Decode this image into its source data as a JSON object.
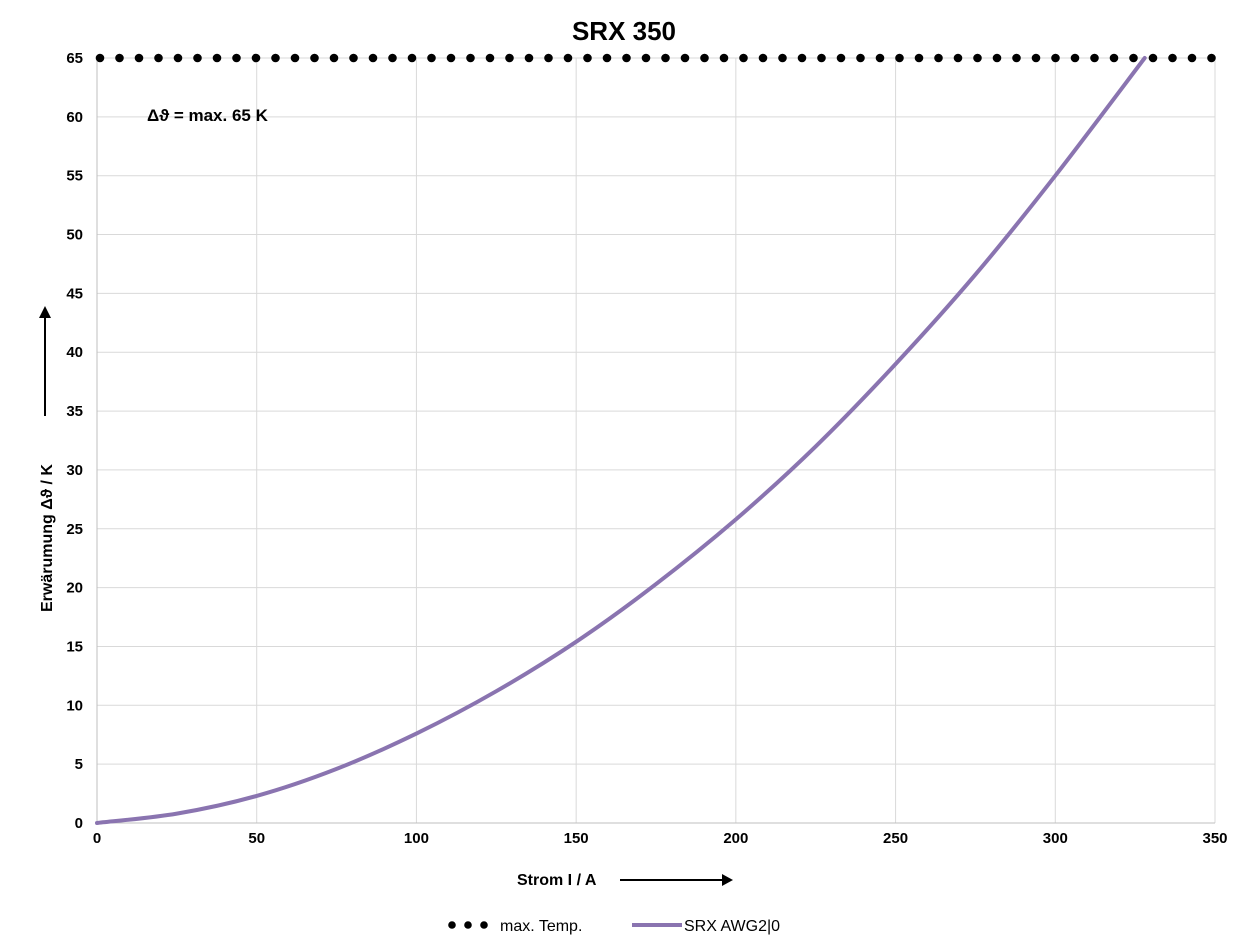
{
  "chart_data": {
    "type": "line",
    "title": "SRX 350",
    "xlabel": "Strom I / A",
    "ylabel": "Erwärumung Δϑ / K",
    "xlim": [
      0,
      350
    ],
    "ylim": [
      0,
      65
    ],
    "x_ticks": [
      "0",
      "50",
      "100",
      "150",
      "200",
      "250",
      "300",
      "350"
    ],
    "y_ticks": [
      "0",
      "5",
      "10",
      "15",
      "20",
      "25",
      "30",
      "35",
      "40",
      "45",
      "50",
      "55",
      "60",
      "65"
    ],
    "grid": true,
    "legend_position": "bottom",
    "annotation": "Δϑ = max. 65 K",
    "series": [
      {
        "name": "max. Temp.",
        "style": "dotted",
        "color": "#000000",
        "x": [
          0,
          350
        ],
        "y": [
          65,
          65
        ]
      },
      {
        "name": "SRX AWG2|0",
        "style": "solid",
        "color": "#8a74b0",
        "x": [
          0,
          25,
          50,
          75,
          100,
          125,
          150,
          175,
          200,
          225,
          250,
          275,
          300,
          328
        ],
        "y": [
          0,
          0.8,
          2.3,
          4.6,
          7.6,
          11.2,
          15.4,
          20.3,
          25.8,
          32.0,
          39.0,
          46.6,
          55.0,
          65.0
        ]
      }
    ]
  }
}
